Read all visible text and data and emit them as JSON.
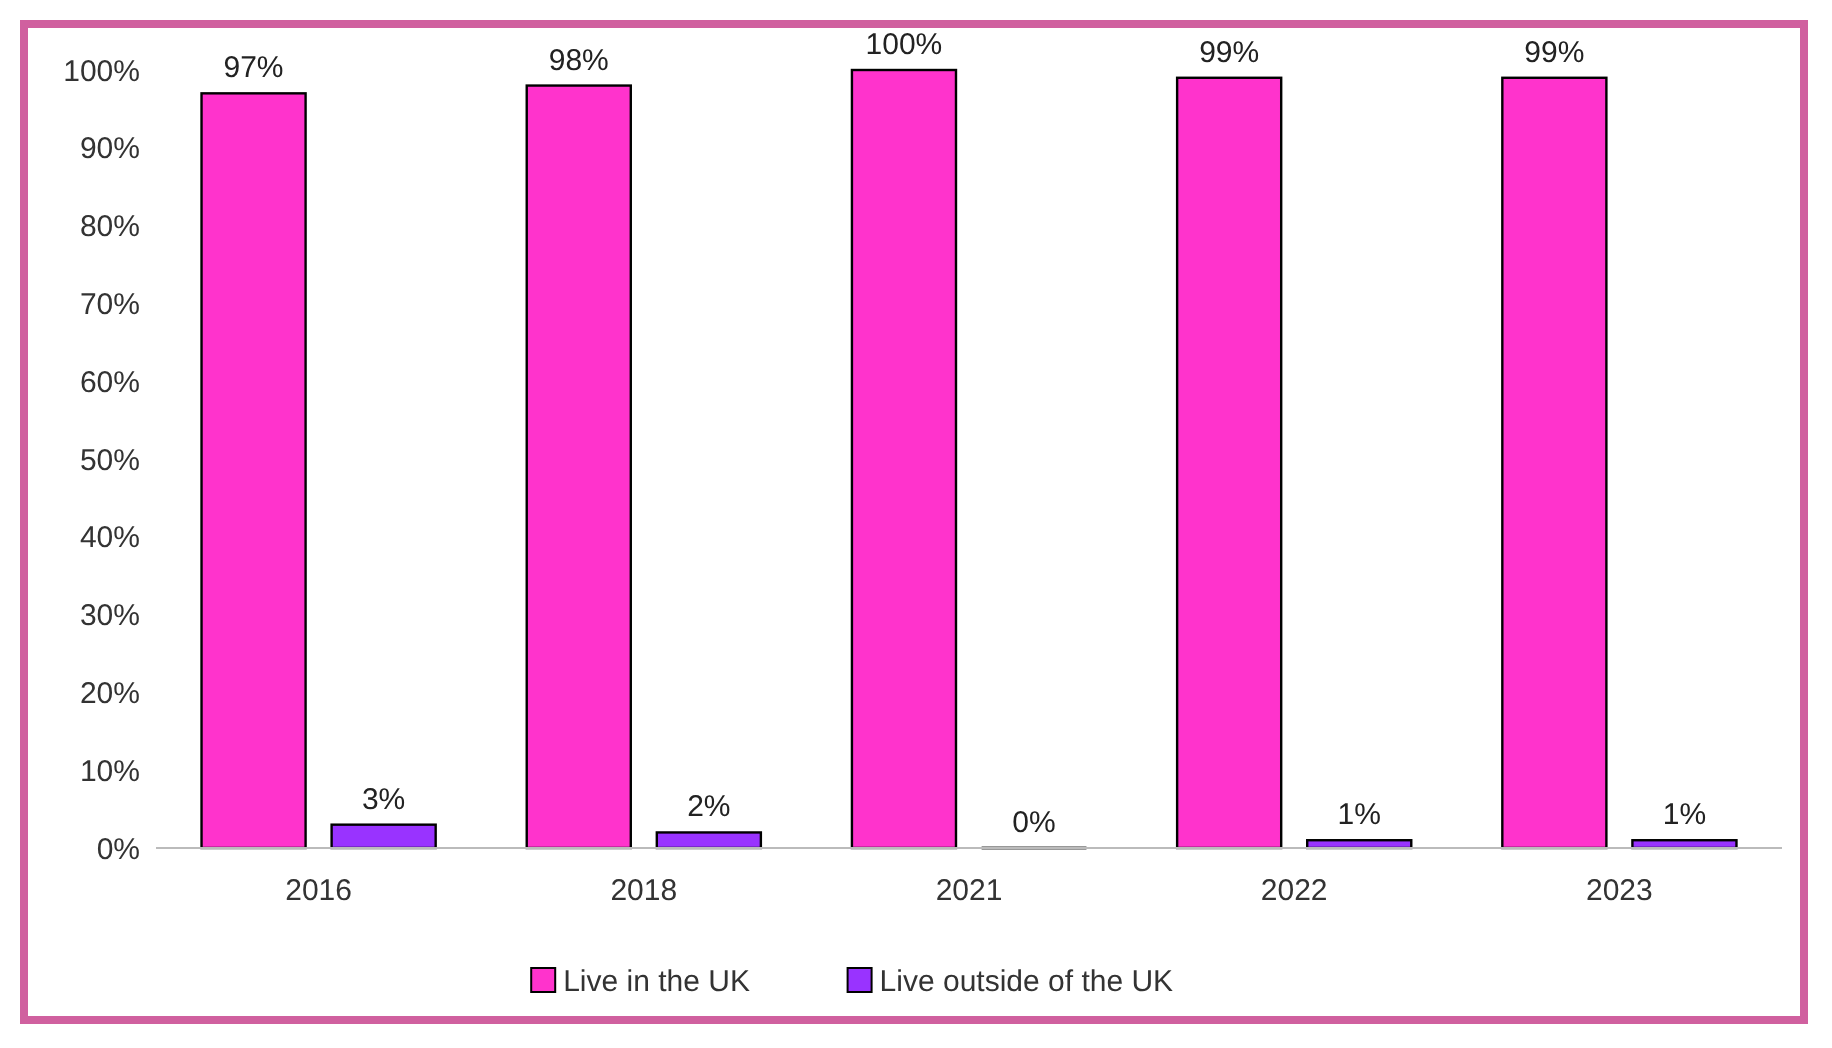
{
  "chart_data": {
    "type": "bar",
    "categories": [
      "2016",
      "2018",
      "2021",
      "2022",
      "2023"
    ],
    "series": [
      {
        "name": "Live in the UK",
        "color": "#ff33cc",
        "values": [
          97,
          98,
          100,
          99,
          99
        ],
        "value_labels": [
          "97%",
          "98%",
          "100%",
          "99%",
          "99%"
        ]
      },
      {
        "name": "Live outside of the UK",
        "color": "#9933ff",
        "values": [
          3,
          2,
          0,
          1,
          1
        ],
        "value_labels": [
          "3%",
          "2%",
          "0%",
          "1%",
          "1%"
        ]
      }
    ],
    "ylim": [
      0,
      100
    ],
    "yticks": [
      {
        "value": 0,
        "label": "0%"
      },
      {
        "value": 10,
        "label": "10%"
      },
      {
        "value": 20,
        "label": "20%"
      },
      {
        "value": 30,
        "label": "30%"
      },
      {
        "value": 40,
        "label": "40%"
      },
      {
        "value": 50,
        "label": "50%"
      },
      {
        "value": 60,
        "label": "60%"
      },
      {
        "value": 70,
        "label": "70%"
      },
      {
        "value": 80,
        "label": "80%"
      },
      {
        "value": 90,
        "label": "90%"
      },
      {
        "value": 100,
        "label": "100%"
      }
    ],
    "grid": false,
    "legend": "bottom"
  }
}
